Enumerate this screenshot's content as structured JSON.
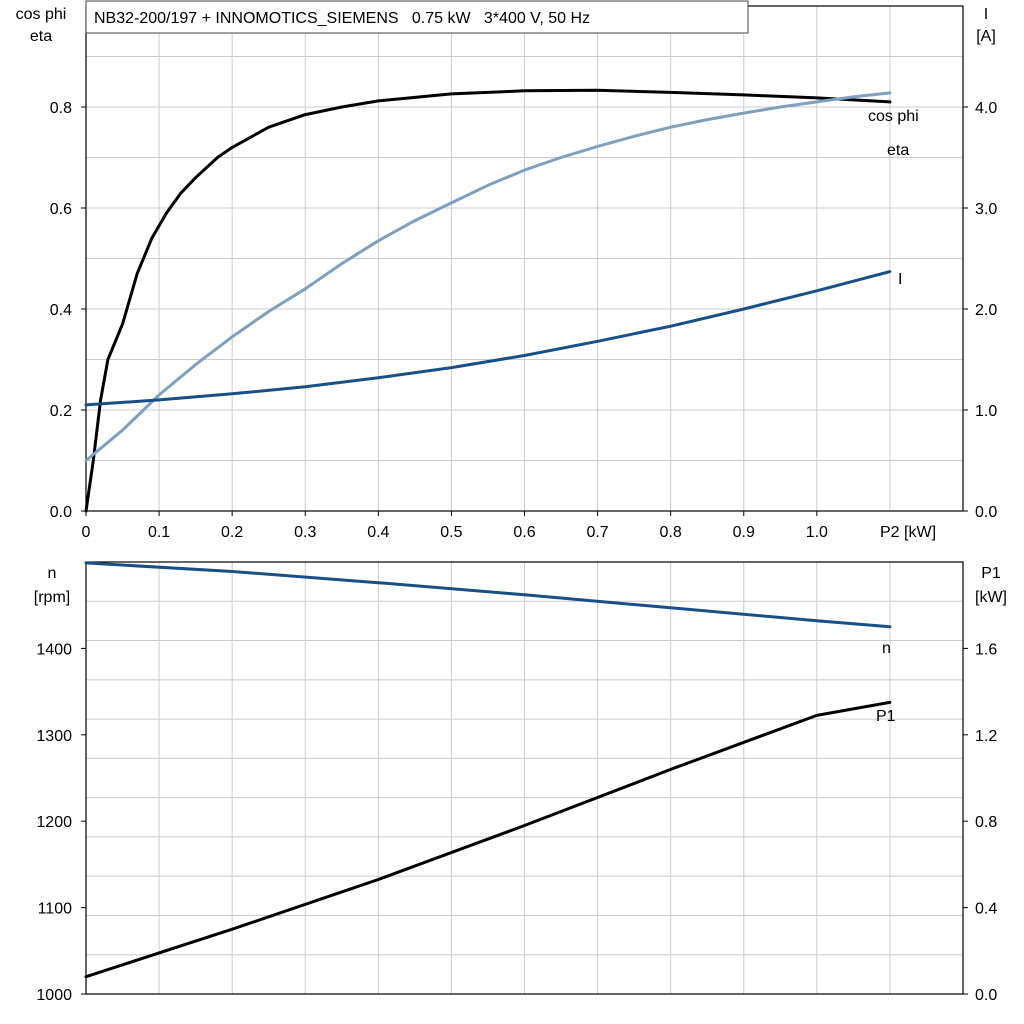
{
  "chart_data": [
    {
      "type": "line",
      "title": "NB32-200/197 + INNOMOTICS_SIEMENS   0.75 kW   3*400 V, 50 Hz",
      "xlabel": "P2 [kW]",
      "ylabel_left": [
        "cos phi",
        "eta"
      ],
      "ylabel_right": [
        "I",
        "[A]"
      ],
      "xlim": [
        0,
        1.2
      ],
      "ylim_left": [
        0,
        1.0
      ],
      "ylim_right": [
        0,
        5.0
      ],
      "x_ticks": [
        "0",
        "0.1",
        "0.2",
        "0.3",
        "0.4",
        "0.5",
        "0.6",
        "0.7",
        "0.8",
        "0.9",
        "1.0"
      ],
      "y_left_ticks": [
        "0.0",
        "0.2",
        "0.4",
        "0.6",
        "0.8"
      ],
      "y_right_ticks": [
        "0.0",
        "1.0",
        "2.0",
        "3.0",
        "4.0"
      ],
      "grid": true,
      "series": [
        {
          "name": "eta",
          "axis": "left",
          "color": "#000000",
          "x": [
            0,
            0.01,
            0.02,
            0.03,
            0.05,
            0.07,
            0.09,
            0.11,
            0.13,
            0.15,
            0.18,
            0.2,
            0.25,
            0.3,
            0.35,
            0.4,
            0.5,
            0.6,
            0.7,
            0.8,
            0.9,
            1.0,
            1.1
          ],
          "y": [
            0,
            0.1,
            0.22,
            0.3,
            0.37,
            0.47,
            0.54,
            0.59,
            0.63,
            0.66,
            0.7,
            0.72,
            0.76,
            0.785,
            0.8,
            0.812,
            0.826,
            0.832,
            0.833,
            0.829,
            0.824,
            0.818,
            0.81
          ]
        },
        {
          "name": "cos phi",
          "axis": "left",
          "color": "#7f9fbd",
          "x": [
            0,
            0.05,
            0.1,
            0.15,
            0.2,
            0.25,
            0.3,
            0.35,
            0.4,
            0.45,
            0.5,
            0.55,
            0.6,
            0.65,
            0.7,
            0.75,
            0.8,
            0.85,
            0.9,
            0.95,
            1.0,
            1.05,
            1.1
          ],
          "y": [
            0.1,
            0.16,
            0.23,
            0.29,
            0.345,
            0.395,
            0.44,
            0.49,
            0.535,
            0.575,
            0.61,
            0.645,
            0.675,
            0.7,
            0.722,
            0.742,
            0.76,
            0.775,
            0.788,
            0.8,
            0.81,
            0.82,
            0.828
          ]
        },
        {
          "name": "I",
          "axis": "right",
          "color": "#1a4e86",
          "x": [
            0,
            0.1,
            0.2,
            0.3,
            0.4,
            0.5,
            0.6,
            0.7,
            0.8,
            0.9,
            1.0,
            1.1
          ],
          "y": [
            1.05,
            1.1,
            1.16,
            1.23,
            1.32,
            1.42,
            1.54,
            1.68,
            1.83,
            2.0,
            2.18,
            2.37
          ]
        }
      ]
    },
    {
      "type": "line",
      "title": "",
      "xlabel": "",
      "ylabel_left": [
        "n",
        "[rpm]"
      ],
      "ylabel_right": [
        "P1",
        "[kW]"
      ],
      "xlim": [
        0,
        1.2
      ],
      "ylim_left": [
        1000,
        1500
      ],
      "ylim_right": [
        0,
        2.0
      ],
      "y_left_ticks": [
        "1000",
        "1100",
        "1200",
        "1300",
        "1400"
      ],
      "y_right_ticks": [
        "0.0",
        "0.4",
        "0.8",
        "1.2",
        "1.6"
      ],
      "grid": true,
      "series": [
        {
          "name": "n",
          "axis": "left",
          "color": "#1a4e86",
          "x": [
            0,
            0.2,
            0.4,
            0.6,
            0.8,
            1.0,
            1.1
          ],
          "y": [
            1499,
            1489,
            1476,
            1462,
            1447,
            1432,
            1425
          ]
        },
        {
          "name": "P1",
          "axis": "right",
          "color": "#000000",
          "x": [
            0,
            0.2,
            0.4,
            0.6,
            0.8,
            1.0,
            1.1
          ],
          "y": [
            0.08,
            0.3,
            0.53,
            0.78,
            1.04,
            1.29,
            1.35
          ]
        }
      ]
    }
  ]
}
